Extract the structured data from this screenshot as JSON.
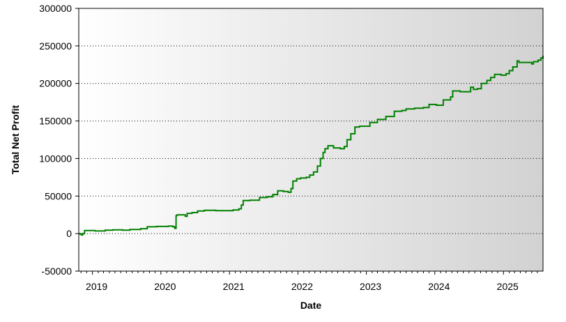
{
  "chart_data": {
    "type": "line",
    "title": "",
    "xlabel": "Date",
    "ylabel": "Total Net Profit",
    "ylim": [
      -50000,
      300000
    ],
    "xlim": [
      "2018-10-20",
      "2025-07-31"
    ],
    "yticks": [
      "300000",
      "250000",
      "200000",
      "150000",
      "100000",
      "50000",
      "0",
      "-50000"
    ],
    "xticks": [
      "2019",
      "2020",
      "2021",
      "2022",
      "2023",
      "2024",
      "2025"
    ],
    "grid": true,
    "plot_background": [
      "#ffffff",
      "#d2d2d2"
    ],
    "colors": {
      "line": "#008000",
      "grid": "#000000",
      "axis": "#000000"
    },
    "series": [
      {
        "values": [
          [
            "2018-10-20",
            0
          ],
          [
            "2018-10-28",
            -1000
          ],
          [
            "2018-11-05",
            -2000
          ],
          [
            "2018-11-10",
            0
          ],
          [
            "2018-11-20",
            4000
          ],
          [
            "2019-01-15",
            3500
          ],
          [
            "2019-02-20",
            3500
          ],
          [
            "2019-03-10",
            4500
          ],
          [
            "2019-04-20",
            5000
          ],
          [
            "2019-06-10",
            4500
          ],
          [
            "2019-07-20",
            5500
          ],
          [
            "2019-09-15",
            6500
          ],
          [
            "2019-10-20",
            9000
          ],
          [
            "2019-12-10",
            9500
          ],
          [
            "2020-02-10",
            10000
          ],
          [
            "2020-03-05",
            9000
          ],
          [
            "2020-03-15",
            7000
          ],
          [
            "2020-03-22",
            24000
          ],
          [
            "2020-03-28",
            25000
          ],
          [
            "2020-05-10",
            23000
          ],
          [
            "2020-05-20",
            27000
          ],
          [
            "2020-06-15",
            28000
          ],
          [
            "2020-07-15",
            30000
          ],
          [
            "2020-08-20",
            31000
          ],
          [
            "2020-10-20",
            30500
          ],
          [
            "2020-12-20",
            30500
          ],
          [
            "2021-01-20",
            31500
          ],
          [
            "2021-02-20",
            33000
          ],
          [
            "2021-03-05",
            38000
          ],
          [
            "2021-03-15",
            44000
          ],
          [
            "2021-04-20",
            44500
          ],
          [
            "2021-06-10",
            48000
          ],
          [
            "2021-07-20",
            49000
          ],
          [
            "2021-08-20",
            52000
          ],
          [
            "2021-09-15",
            57000
          ],
          [
            "2021-10-15",
            56000
          ],
          [
            "2021-11-10",
            55000
          ],
          [
            "2021-11-25",
            60000
          ],
          [
            "2021-12-05",
            70000
          ],
          [
            "2021-12-25",
            73000
          ],
          [
            "2022-01-15",
            74000
          ],
          [
            "2022-02-15",
            75000
          ],
          [
            "2022-03-05",
            78000
          ],
          [
            "2022-03-25",
            82000
          ],
          [
            "2022-04-15",
            90000
          ],
          [
            "2022-05-01",
            100000
          ],
          [
            "2022-05-15",
            108000
          ],
          [
            "2022-05-25",
            113000
          ],
          [
            "2022-06-10",
            117000
          ],
          [
            "2022-07-10",
            114000
          ],
          [
            "2022-08-15",
            113000
          ],
          [
            "2022-09-05",
            116000
          ],
          [
            "2022-09-20",
            125000
          ],
          [
            "2022-10-10",
            133000
          ],
          [
            "2022-11-01",
            142000
          ],
          [
            "2022-11-25",
            143000
          ],
          [
            "2022-12-20",
            143000
          ],
          [
            "2023-01-20",
            148000
          ],
          [
            "2023-03-01",
            152000
          ],
          [
            "2023-04-15",
            156000
          ],
          [
            "2023-05-30",
            163000
          ],
          [
            "2023-07-10",
            164000
          ],
          [
            "2023-08-01",
            166000
          ],
          [
            "2023-09-15",
            167000
          ],
          [
            "2023-11-01",
            168000
          ],
          [
            "2023-12-01",
            172000
          ],
          [
            "2024-01-10",
            171000
          ],
          [
            "2024-02-15",
            178000
          ],
          [
            "2024-03-25",
            182000
          ],
          [
            "2024-04-05",
            190000
          ],
          [
            "2024-05-15",
            189000
          ],
          [
            "2024-06-20",
            189000
          ],
          [
            "2024-07-10",
            195000
          ],
          [
            "2024-07-25",
            192000
          ],
          [
            "2024-08-15",
            193000
          ],
          [
            "2024-09-05",
            200000
          ],
          [
            "2024-10-05",
            204000
          ],
          [
            "2024-10-25",
            208000
          ],
          [
            "2024-11-15",
            212000
          ],
          [
            "2024-12-20",
            211000
          ],
          [
            "2025-01-15",
            213000
          ],
          [
            "2025-02-01",
            217000
          ],
          [
            "2025-02-20",
            222000
          ],
          [
            "2025-03-15",
            230000
          ],
          [
            "2025-03-25",
            228000
          ],
          [
            "2025-05-01",
            228000
          ],
          [
            "2025-06-01",
            226000
          ],
          [
            "2025-06-10",
            229000
          ],
          [
            "2025-07-05",
            231000
          ],
          [
            "2025-07-20",
            234000
          ],
          [
            "2025-07-31",
            237000
          ]
        ]
      }
    ]
  }
}
